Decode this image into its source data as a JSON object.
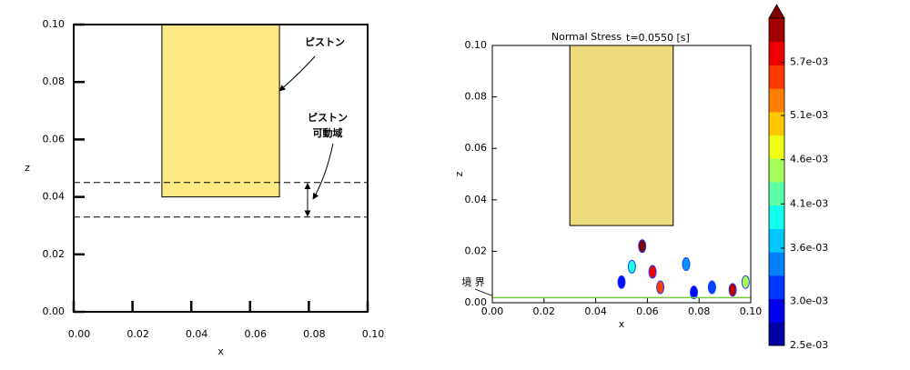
{
  "chart_data": [
    {
      "type": "schematic",
      "xlabel": "x",
      "ylabel": "z",
      "xlim": [
        0,
        0.1
      ],
      "ylim": [
        0,
        0.1
      ],
      "xticks": [
        {
          "value": 0,
          "label": "0.00"
        },
        {
          "value": 0.02,
          "label": "0.02"
        },
        {
          "value": 0.04,
          "label": "0.04"
        },
        {
          "value": 0.06,
          "label": "0.06"
        },
        {
          "value": 0.08,
          "label": "0.08"
        },
        {
          "value": 0.1,
          "label": "0.10"
        }
      ],
      "yticks": [
        {
          "value": 0,
          "label": "0.00"
        },
        {
          "value": 0.02,
          "label": "0.02"
        },
        {
          "value": 0.04,
          "label": "0.04"
        },
        {
          "value": 0.06,
          "label": "0.06"
        },
        {
          "value": 0.08,
          "label": "0.08"
        },
        {
          "value": 0.1,
          "label": "0.10"
        }
      ],
      "piston": {
        "x": [
          0.03,
          0.07
        ],
        "z": [
          0.04,
          0.1
        ],
        "color": "#fce983"
      },
      "dashed_lines": [
        0.045,
        0.033
      ],
      "annotations": [
        {
          "lines": [
            "ピストン"
          ]
        },
        {
          "lines": [
            "ピストン",
            "可動域"
          ]
        }
      ]
    },
    {
      "type": "contour",
      "title": "Normal Stress",
      "subtitle": "t=0.0550 [s]",
      "xlabel": "x",
      "ylabel": "z",
      "xlim": [
        0,
        0.1
      ],
      "ylim": [
        0,
        0.1
      ],
      "xticks": [
        {
          "value": 0,
          "label": "0.00"
        },
        {
          "value": 0.02,
          "label": "0.02"
        },
        {
          "value": 0.04,
          "label": "0.04"
        },
        {
          "value": 0.06,
          "label": "0.06"
        },
        {
          "value": 0.08,
          "label": "0.08"
        },
        {
          "value": 0.1,
          "label": "0.10"
        }
      ],
      "yticks": [
        {
          "value": 0,
          "label": "0.00"
        },
        {
          "value": 0.02,
          "label": "0.02"
        },
        {
          "value": 0.04,
          "label": "0.04"
        },
        {
          "value": 0.06,
          "label": "0.06"
        },
        {
          "value": 0.08,
          "label": "0.08"
        },
        {
          "value": 0.1,
          "label": "0.10"
        }
      ],
      "piston": {
        "x": [
          0.03,
          0.07
        ],
        "z": [
          0.03,
          0.1
        ],
        "color": "#ecdc7e"
      },
      "boundary": {
        "z": 0.002,
        "color": "#7ac943",
        "label": "境 界"
      },
      "points": {
        "x": [
          0.058,
          0.062,
          0.065,
          0.054,
          0.075,
          0.093,
          0.098,
          0.05,
          0.085,
          0.078
        ],
        "z": [
          0.022,
          0.012,
          0.006,
          0.014,
          0.015,
          0.005,
          0.008,
          0.008,
          0.006,
          0.004
        ],
        "values": [
          0.0062,
          0.0058,
          0.0055,
          0.004,
          0.0035,
          0.006,
          0.0045,
          0.003,
          0.0032,
          0.003
        ]
      },
      "colorbar": {
        "colormap": "jet",
        "clim": [
          0.0025,
          0.0062
        ],
        "extend": "max",
        "ticks": [
          {
            "value": 0.0025,
            "label": "2.5e-03"
          },
          {
            "value": 0.003,
            "label": "3.0e-03"
          },
          {
            "value": 0.0036,
            "label": "3.6e-03"
          },
          {
            "value": 0.0041,
            "label": "4.1e-03"
          },
          {
            "value": 0.0046,
            "label": "4.6e-03"
          },
          {
            "value": 0.0051,
            "label": "5.1e-03"
          },
          {
            "value": 0.0057,
            "label": "5.7e-03"
          }
        ]
      }
    }
  ]
}
